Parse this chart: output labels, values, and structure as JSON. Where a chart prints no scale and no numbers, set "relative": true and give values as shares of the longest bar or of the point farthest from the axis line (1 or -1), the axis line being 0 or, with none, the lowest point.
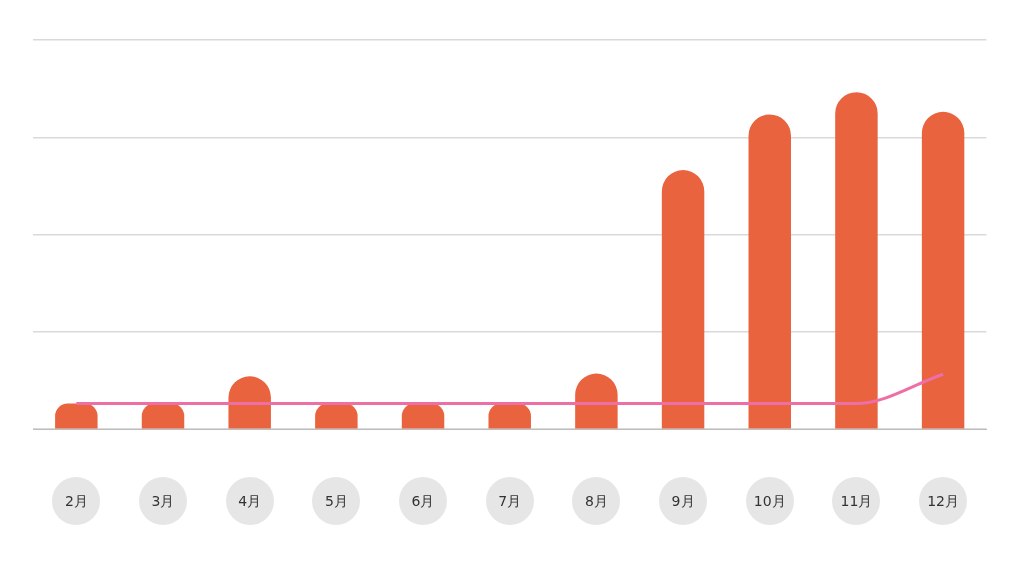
{
  "chart_data": {
    "type": "bar",
    "relative": true,
    "grid": "y",
    "legend": false,
    "categories": [
      "2月",
      "3月",
      "4月",
      "5月",
      "6月",
      "7月",
      "8月",
      "9月",
      "10月",
      "11月",
      "12月"
    ],
    "series": [
      {
        "color": "#e9633f",
        "values": [
          0.076,
          0.076,
          0.157,
          0.076,
          0.076,
          0.076,
          0.165,
          0.769,
          0.934,
          1,
          0.942
        ]
      },
      {
        "type": "line",
        "color": "#ee6fa6",
        "values": [
          0.076,
          0.076,
          0.076,
          0.076,
          0.076,
          0.076,
          0.076,
          0.076,
          0.076,
          0.076,
          0.163
        ]
      }
    ]
  }
}
